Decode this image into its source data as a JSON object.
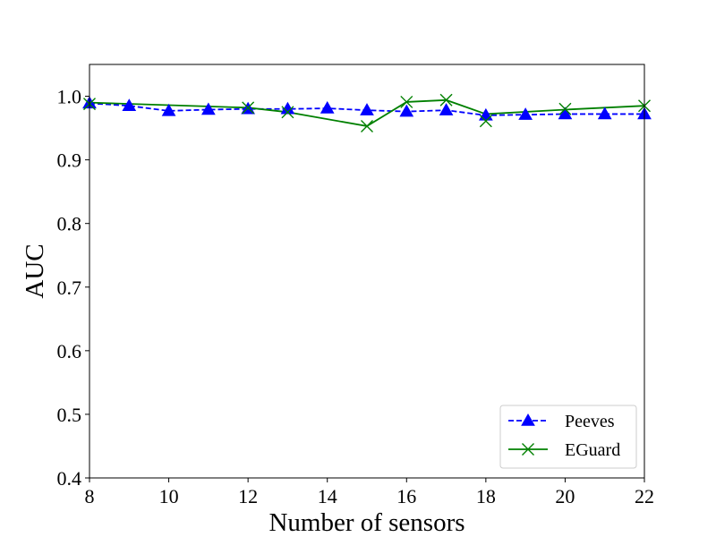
{
  "chart_data": {
    "type": "line",
    "xlabel": "Number of sensors",
    "ylabel": "AUC",
    "xlim": [
      8,
      22
    ],
    "ylim": [
      0.4,
      1.05
    ],
    "xticks": [
      8,
      10,
      12,
      14,
      16,
      18,
      20,
      22
    ],
    "yticks": [
      0.4,
      0.5,
      0.6,
      0.7,
      0.8,
      0.9,
      1.0
    ],
    "xtick_labels": [
      "8",
      "10",
      "12",
      "14",
      "16",
      "18",
      "20",
      "22"
    ],
    "ytick_labels": [
      "0.4",
      "0.5",
      "0.6",
      "0.7",
      "0.8",
      "0.9",
      "1.0"
    ],
    "grid": false,
    "legend_position": "lower-right",
    "series": [
      {
        "name": "Peeves",
        "color": "#0000ff",
        "line_style": "dashed",
        "marker": "triangle",
        "x": [
          8,
          9,
          10,
          11,
          12,
          13,
          14,
          15,
          16,
          17,
          18,
          19,
          20,
          21,
          22
        ],
        "y": [
          0.989,
          0.985,
          0.977,
          0.979,
          0.98,
          0.98,
          0.981,
          0.978,
          0.976,
          0.978,
          0.97,
          0.971,
          0.972,
          0.972,
          0.972
        ]
      },
      {
        "name": "EGuard",
        "color": "#008000",
        "line_style": "solid",
        "marker": "x",
        "x": [
          8,
          12,
          13,
          15,
          16,
          17,
          18,
          20,
          22
        ],
        "y": [
          0.988,
          0.982,
          0.975,
          0.953,
          0.991,
          0.994,
          0.961,
          0.98,
          0.985
        ],
        "line_x": [
          8,
          12,
          13,
          15,
          16,
          17,
          18,
          20,
          22
        ],
        "line_y": [
          0.99,
          0.982,
          0.975,
          0.953,
          0.991,
          0.994,
          0.972,
          0.979,
          0.985
        ]
      }
    ]
  }
}
